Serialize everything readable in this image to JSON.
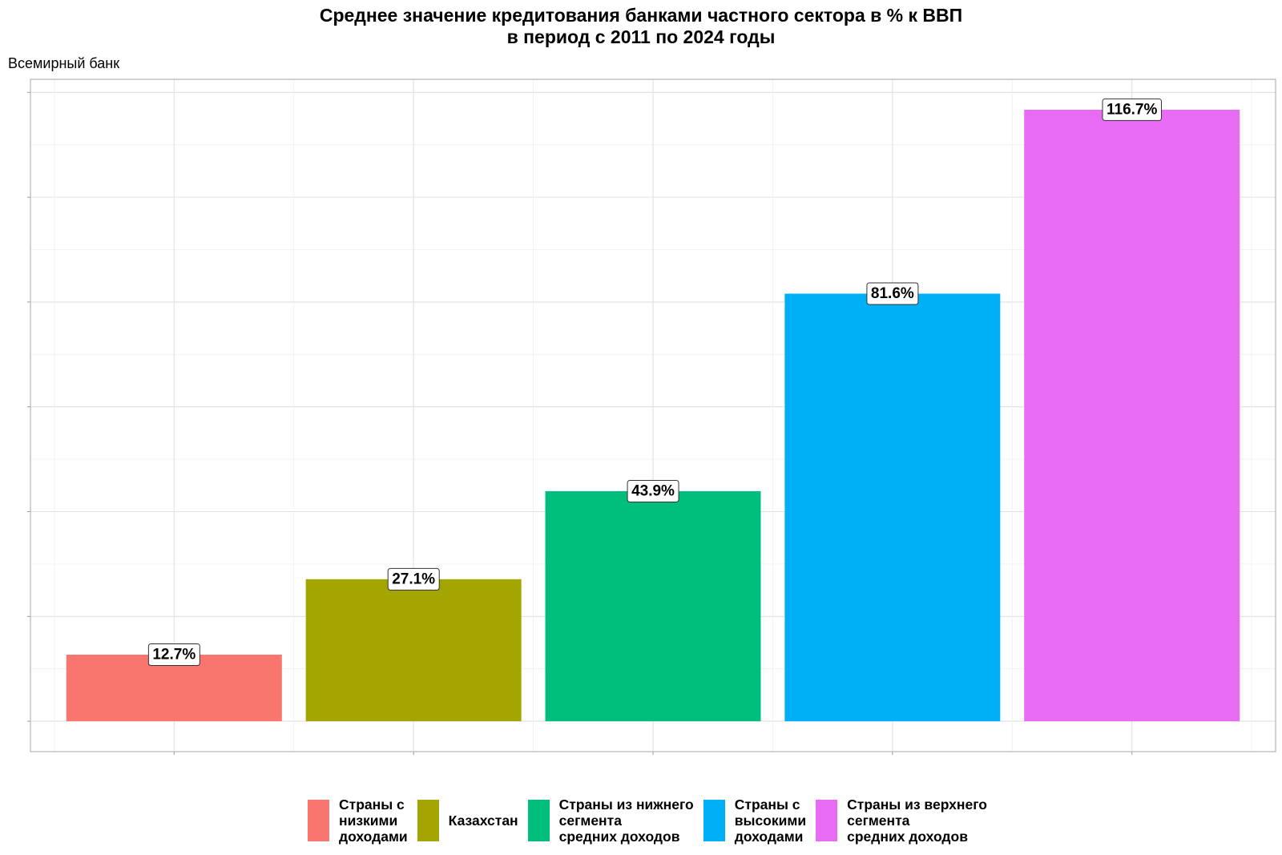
{
  "chart_data": {
    "type": "bar",
    "title_lines": [
      "Среднее значение кредитования банками частного сектора в % к ВВП",
      "в период с 2011 по 2024 годы"
    ],
    "subtitle": "Всемирный банк",
    "categories": [
      "Страны с низкими доходами",
      "Казахстан",
      "Страны из нижнего сегмента средних доходов",
      "Страны с высокими доходами",
      "Страны из верхнего сегмента средних доходов"
    ],
    "values": [
      12.7,
      27.1,
      43.9,
      81.6,
      116.7
    ],
    "value_labels": [
      "12.7%",
      "27.1%",
      "43.9%",
      "81.6%",
      "116.7%"
    ],
    "colors": [
      "#F8766D",
      "#A3A500",
      "#00BF7D",
      "#00B0F6",
      "#E76BF3"
    ],
    "ylim": [
      -5.8,
      122.5
    ],
    "grid": true,
    "axis_tick_labels": false,
    "legend_position": "bottom",
    "legend": [
      {
        "label": "Страны с\nнизкими\nдоходами",
        "color": "#F8766D"
      },
      {
        "label": "Казахстан",
        "color": "#A3A500"
      },
      {
        "label": "Страны из нижнего\nсегмента\nсредних доходов",
        "color": "#00BF7D"
      },
      {
        "label": "Страны с\nвысокими\nдоходами",
        "color": "#00B0F6"
      },
      {
        "label": "Страны из верхнего\nсегмента\nсредних доходов",
        "color": "#E76BF3"
      }
    ]
  }
}
